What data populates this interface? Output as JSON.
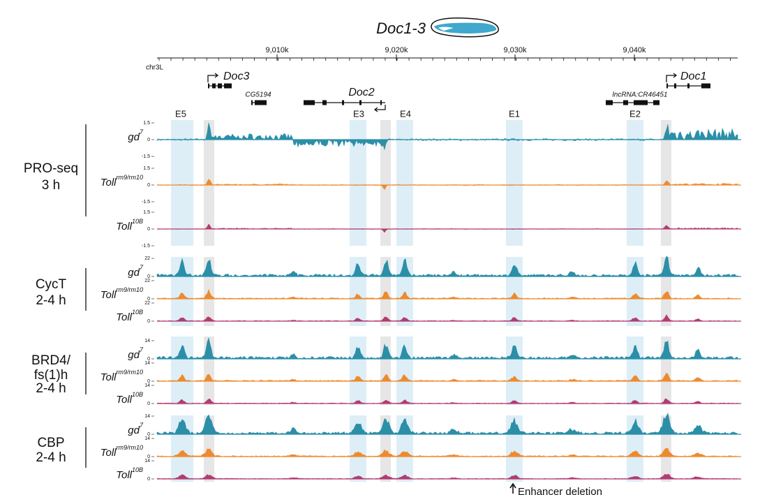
{
  "title": "Doc1-3",
  "axis": {
    "chrom": "chr3L",
    "ticks": [
      "9,010k",
      "9,020k",
      "9,030k",
      "9,040k"
    ]
  },
  "genes": [
    {
      "name": "Doc3"
    },
    {
      "name": "CG5194"
    },
    {
      "name": "Doc2"
    },
    {
      "name": "lncRNA:CR46451"
    },
    {
      "name": "Doc1"
    }
  ],
  "regions": [
    "E5",
    "E3",
    "E4",
    "E1",
    "E2"
  ],
  "groups": [
    {
      "label": [
        "PRO-seq",
        "3 h"
      ],
      "scale": [
        "1.5",
        "0",
        "-1.5"
      ],
      "tracks": [
        {
          "name": "gd",
          "sup": "7"
        },
        {
          "name": "Toll",
          "sup": "rm9/rm10"
        },
        {
          "name": "Toll",
          "sup": "10B"
        }
      ]
    },
    {
      "label": [
        "CycT",
        "2-4 h"
      ],
      "scale": [
        "22",
        "0"
      ],
      "tracks": [
        {
          "name": "gd",
          "sup": "7"
        },
        {
          "name": "Toll",
          "sup": "rm9/rm10"
        },
        {
          "name": "Toll",
          "sup": "10B"
        }
      ]
    },
    {
      "label": [
        "BRD4/",
        "fs(1)h",
        "2-4 h"
      ],
      "scale": [
        "14",
        "0"
      ],
      "tracks": [
        {
          "name": "gd",
          "sup": "7"
        },
        {
          "name": "Toll",
          "sup": "rm9/rm10"
        },
        {
          "name": "Toll",
          "sup": "10B"
        }
      ]
    },
    {
      "label": [
        "CBP",
        "2-4 h"
      ],
      "scale": [
        "14",
        "0"
      ],
      "tracks": [
        {
          "name": "gd",
          "sup": "7"
        },
        {
          "name": "Toll",
          "sup": "rm9/rm10"
        },
        {
          "name": "Toll",
          "sup": "10B"
        }
      ]
    }
  ],
  "annotation": "Enhancer deletion"
}
